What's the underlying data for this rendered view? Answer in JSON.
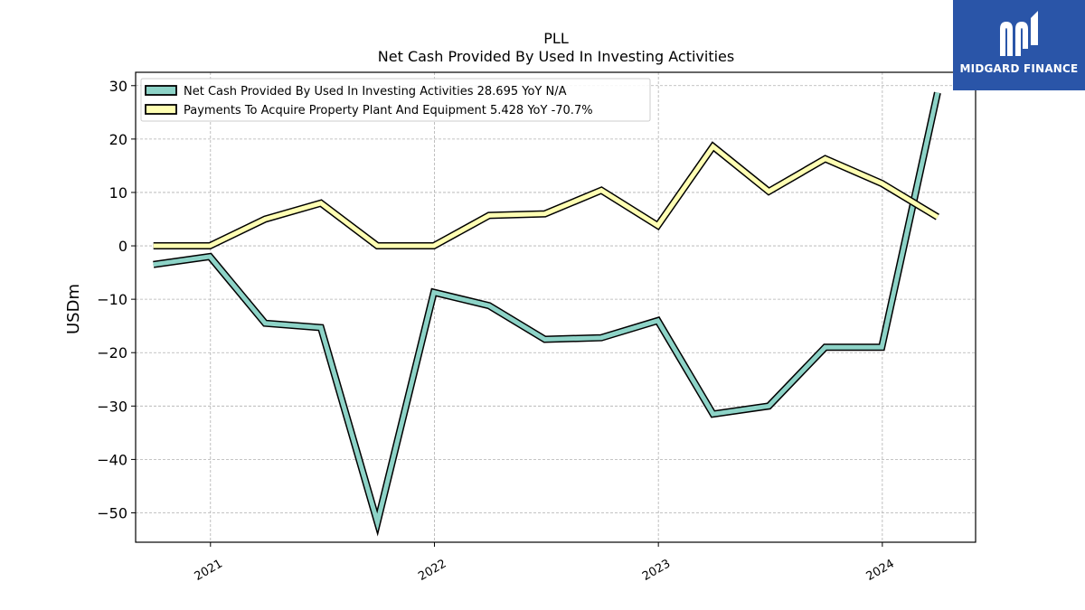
{
  "brand": {
    "name": "MIDGARD FINANCE",
    "logo_icon": "midgard-m-logo-icon",
    "bg_color": "#2a55a8"
  },
  "chart_data": {
    "type": "line",
    "title": "PLL",
    "subtitle": "Net Cash Provided By Used In Investing Activities",
    "ylabel": "USDm",
    "xlabel": "",
    "ylim": [
      -55.5,
      32.5
    ],
    "yticks": [
      30,
      20,
      10,
      0,
      -10,
      -20,
      -30,
      -40,
      -50
    ],
    "ytick_labels": [
      "30",
      "20",
      "10",
      "0",
      "−10",
      "−20",
      "−30",
      "−40",
      "−50"
    ],
    "xtick_labels": [
      "2021",
      "2022",
      "2023",
      "2024"
    ],
    "grid": true,
    "legend_position": "top-left",
    "x": [
      "2020-09-30",
      "2020-12-31",
      "2021-03-31",
      "2021-06-30",
      "2021-09-30",
      "2021-12-31",
      "2022-03-31",
      "2022-06-30",
      "2022-09-30",
      "2022-12-31",
      "2023-03-31",
      "2023-06-30",
      "2023-09-30",
      "2023-12-31",
      "2024-03-31"
    ],
    "series": [
      {
        "name": "Net Cash Provided By Used In Investing Activities",
        "legend_label": "Net Cash Provided By Used In Investing Activities  28.695 YoY N/A",
        "color": "#8dd3c7",
        "values": [
          -3.5,
          -2.0,
          -14.5,
          -15.3,
          -51.8,
          -8.7,
          -11.2,
          -17.5,
          -17.2,
          -14.0,
          -31.5,
          -30.0,
          -19.0,
          -19.0,
          28.7
        ]
      },
      {
        "name": "Payments To Acquire Property Plant And Equipment",
        "legend_label": "Payments To Acquire Property Plant And Equipment  5.428 YoY -70.7%",
        "color": "#ffffb3",
        "values": [
          0.0,
          0.0,
          5.0,
          8.0,
          0.0,
          0.0,
          5.7,
          6.0,
          10.4,
          3.8,
          18.6,
          10.2,
          16.3,
          11.7,
          5.4
        ]
      }
    ]
  }
}
